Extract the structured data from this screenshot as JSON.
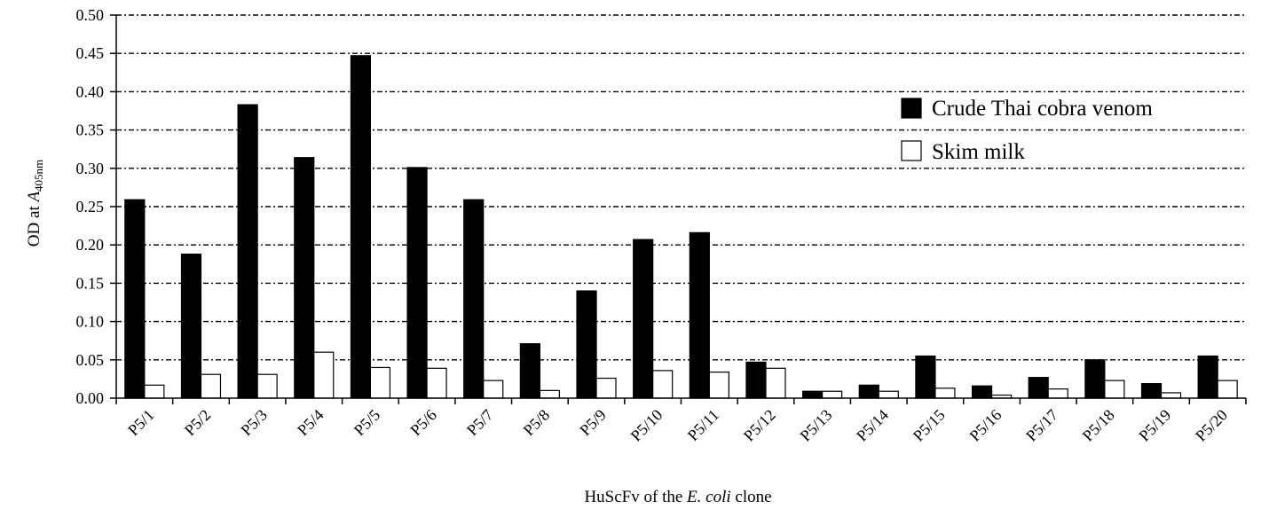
{
  "chart_data": {
    "type": "bar",
    "title": "",
    "xlabel": {
      "prefix": "HuScFv of the ",
      "italic": "E. coli",
      "suffix": " clone"
    },
    "ylabel": {
      "prefix": "OD at ",
      "italic": "A",
      "subscript": "405nm"
    },
    "ylim": [
      0,
      0.5
    ],
    "yticks": [
      "0.00",
      "0.05",
      "0.10",
      "0.15",
      "0.20",
      "0.25",
      "0.30",
      "0.35",
      "0.40",
      "0.45",
      "0.50"
    ],
    "grid": true,
    "legend_position": "top-right",
    "categories": [
      "P5/1",
      "P5/2",
      "P5/3",
      "P5/4",
      "P5/5",
      "P5/6",
      "P5/7",
      "P5/8",
      "P5/9",
      "P5/10",
      "P5/11",
      "P5/12",
      "P5/13",
      "P5/14",
      "P5/15",
      "P5/16",
      "P5/17",
      "P5/18",
      "P5/19",
      "P5/20"
    ],
    "series": [
      {
        "name": "Crude Thai cobra venom",
        "color": "#000000",
        "values": [
          0.259,
          0.188,
          0.383,
          0.314,
          0.447,
          0.301,
          0.259,
          0.071,
          0.14,
          0.207,
          0.216,
          0.047,
          0.009,
          0.017,
          0.055,
          0.016,
          0.027,
          0.05,
          0.019,
          0.055
        ]
      },
      {
        "name": "Skim milk",
        "color": "#ffffff",
        "values": [
          0.017,
          0.031,
          0.031,
          0.06,
          0.04,
          0.039,
          0.023,
          0.01,
          0.026,
          0.036,
          0.034,
          0.039,
          0.009,
          0.009,
          0.013,
          0.004,
          0.012,
          0.023,
          0.007,
          0.023
        ]
      }
    ]
  }
}
